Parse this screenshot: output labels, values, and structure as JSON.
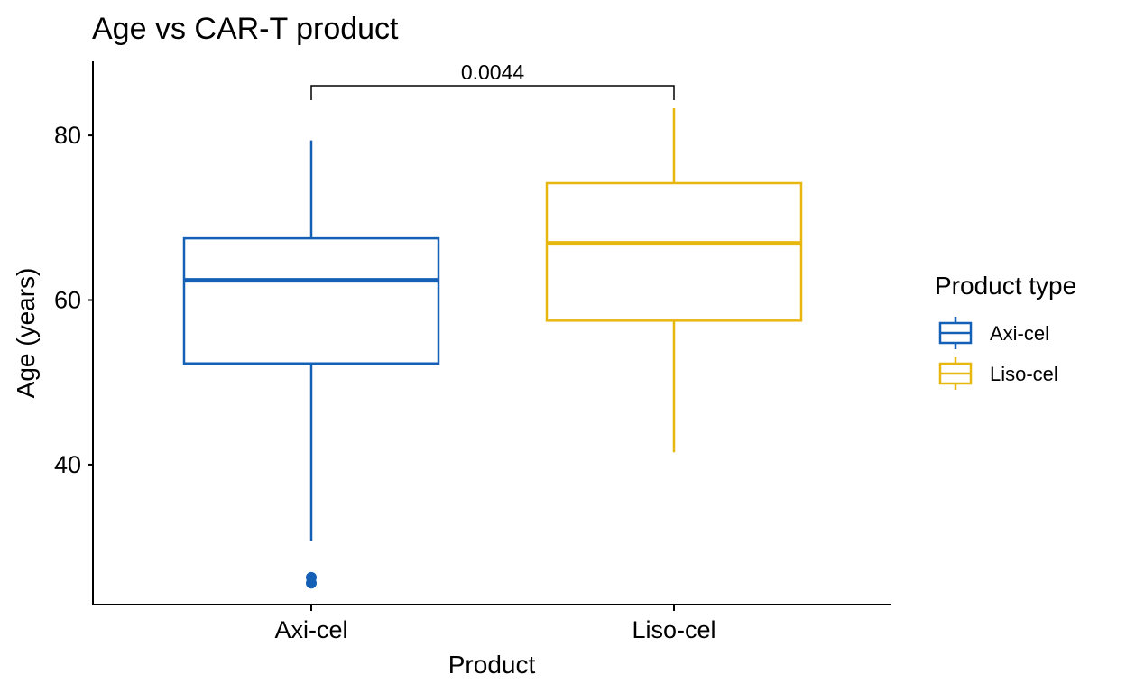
{
  "chart_data": {
    "type": "boxplot",
    "title": "Age vs CAR-T product",
    "xlabel": "Product",
    "ylabel": "Age (years)",
    "categories": [
      "Axi-cel",
      "Liso-cel"
    ],
    "ylim": [
      23,
      89
    ],
    "yticks": [
      40,
      60,
      80
    ],
    "grid": false,
    "legend": {
      "title": "Product type",
      "position": "right",
      "entries": [
        "Axi-cel",
        "Liso-cel"
      ]
    },
    "series": [
      {
        "name": "Axi-cel",
        "color": "#1560B7",
        "min": 30.7,
        "q1": 52.3,
        "median": 62.4,
        "q3": 67.5,
        "max": 79.4,
        "outliers": [
          26.3,
          25.6
        ]
      },
      {
        "name": "Liso-cel",
        "color": "#E8B70F",
        "min": 41.5,
        "q1": 57.5,
        "median": 66.9,
        "q3": 74.2,
        "max": 83.3,
        "outliers": []
      }
    ],
    "comparisons": [
      {
        "groups": [
          "Axi-cel",
          "Liso-cel"
        ],
        "label": "0.0044"
      }
    ]
  }
}
